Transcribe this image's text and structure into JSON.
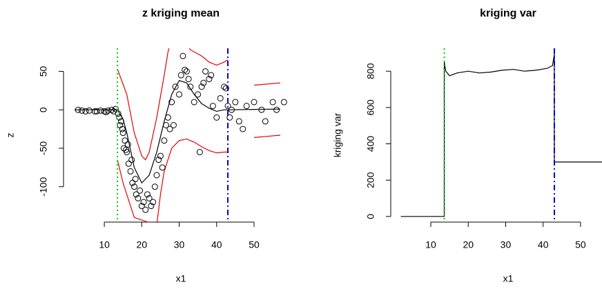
{
  "chart_data": [
    {
      "type": "scatter",
      "title": "z kriging mean",
      "xlabel": "x1",
      "ylabel": "z",
      "xlim": [
        -0.9,
        61.8
      ],
      "ylim": [
        -146,
        80
      ],
      "xticks": [
        10,
        20,
        30,
        40,
        50
      ],
      "yticks": [
        -100,
        -50,
        0,
        50
      ],
      "x": [
        3,
        4,
        5,
        6,
        7.5,
        8,
        9,
        10,
        10.5,
        11,
        12,
        12.5,
        13,
        13.7,
        14,
        14.2,
        14.5,
        14.8,
        15,
        15.2,
        15.5,
        15.8,
        16,
        16.3,
        16.5,
        17,
        17.3,
        17.5,
        18,
        18.3,
        18.5,
        19,
        19.5,
        20,
        20.5,
        21,
        21.5,
        22,
        22.5,
        23,
        23.5,
        24,
        24.5,
        25,
        25.5,
        26,
        26.5,
        27,
        27.5,
        28,
        28.5,
        29,
        30,
        30.5,
        31,
        31.5,
        32,
        32.5,
        33,
        34,
        35,
        35.5,
        36,
        36.5,
        37,
        38,
        38.5,
        39,
        40,
        41,
        42,
        42.5,
        43,
        43.5,
        44,
        45,
        46,
        47,
        48,
        50,
        52,
        53,
        55,
        56,
        58
      ],
      "values": [
        0,
        -1,
        -2,
        -1,
        -2,
        -2,
        -1,
        -2,
        -3,
        -1,
        0,
        -2,
        1,
        -5,
        -10,
        -20,
        -15,
        -25,
        -30,
        -50,
        -40,
        -52,
        -55,
        -45,
        -70,
        -80,
        -65,
        -95,
        -100,
        -90,
        -110,
        -115,
        -105,
        -125,
        -120,
        -130,
        -110,
        -115,
        -125,
        -120,
        -100,
        -85,
        -65,
        -60,
        -75,
        -40,
        -20,
        -10,
        -25,
        10,
        -20,
        30,
        20,
        45,
        70,
        52,
        50,
        40,
        30,
        10,
        20,
        -55,
        30,
        35,
        50,
        40,
        45,
        5,
        -10,
        15,
        30,
        28,
        5,
        -10,
        0,
        10,
        -15,
        -25,
        5,
        10,
        0,
        -15,
        10,
        0,
        10
      ],
      "color": "#000000",
      "lines": [
        {
          "color": "#000000",
          "x": [
            2,
            13.5,
            15,
            16,
            18,
            20,
            22,
            24,
            26,
            28,
            30,
            32,
            34,
            36,
            38,
            40,
            42,
            43,
            50,
            57
          ],
          "values": [
            0,
            0,
            -12,
            -30,
            -75,
            -95,
            -85,
            -55,
            -15,
            20,
            38,
            35,
            20,
            8,
            2,
            -2,
            0,
            0,
            0.5,
            1
          ]
        },
        {
          "color": "#e00000",
          "x": [
            13.5,
            16,
            18,
            20,
            21,
            22,
            24,
            26,
            27,
            28,
            30,
            33,
            36,
            38,
            40,
            42,
            43,
            43,
            50,
            57
          ],
          "values": [
            53,
            20,
            -30,
            -60,
            -65,
            -55,
            -10,
            45,
            75,
            95,
            100,
            78,
            70,
            62,
            58,
            62,
            65,
            null,
            32,
            35
          ]
        },
        {
          "color": "#e00000",
          "x": [
            13.5,
            15,
            17,
            18,
            24,
            25,
            26,
            28,
            30,
            32,
            34,
            36,
            38,
            40,
            42,
            43,
            43,
            50,
            57
          ],
          "values": [
            -65,
            -95,
            -125,
            -140,
            -150,
            -110,
            -80,
            -50,
            -40,
            -38,
            -42,
            -48,
            -53,
            -56,
            -55,
            -55,
            null,
            -36,
            -33
          ]
        }
      ],
      "vlines": [
        {
          "x": 13.5,
          "color": "#00cc00",
          "style": "dotted"
        },
        {
          "x": 43,
          "color": "#0000cc",
          "style": "dashdot"
        }
      ]
    },
    {
      "type": "line",
      "title": "kriging var",
      "xlabel": "x1",
      "ylabel": "kriging var",
      "xlim": [
        -0.7,
        62
      ],
      "ylim": [
        -31,
        926
      ],
      "xticks": [
        10,
        20,
        30,
        40,
        50
      ],
      "yticks": [
        0,
        200,
        400,
        600,
        800
      ],
      "x": [
        2,
        13.6,
        13.6,
        14,
        15,
        17,
        20,
        23,
        26,
        29,
        32,
        35,
        38,
        41,
        42.5,
        43,
        43,
        57
      ],
      "values": [
        0,
        0,
        850,
        800,
        775,
        790,
        800,
        790,
        795,
        805,
        810,
        800,
        805,
        815,
        830,
        895,
        300,
        300
      ],
      "color": "#000000",
      "vlines": [
        {
          "x": 13.6,
          "color": "#00cc00",
          "style": "dotted"
        },
        {
          "x": 43,
          "color": "#0000cc",
          "style": "dashdot"
        }
      ]
    }
  ]
}
